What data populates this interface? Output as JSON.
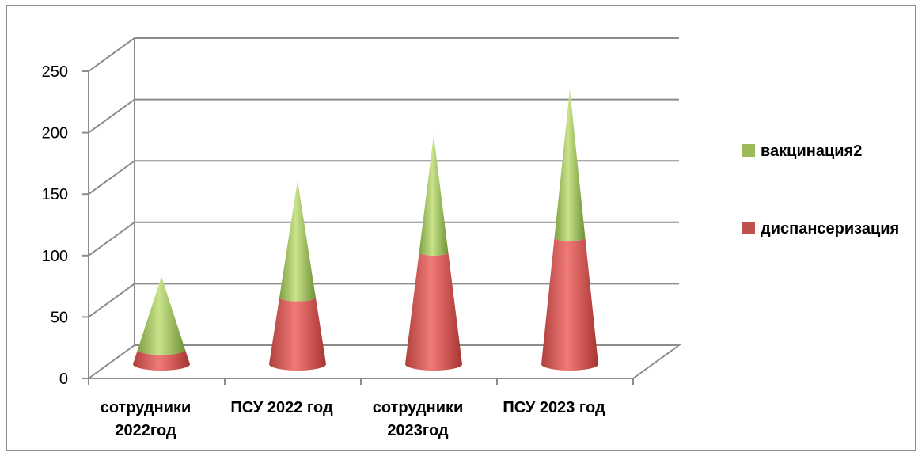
{
  "chart_data": {
    "type": "bar",
    "style": "3d-stacked-cone",
    "categories": [
      [
        "сотрудники",
        "2022год"
      ],
      [
        "ПСУ 2022 год"
      ],
      [
        "сотрудники",
        "2023год"
      ],
      [
        "ПСУ 2023 год"
      ]
    ],
    "series": [
      {
        "name": "диспансеризация",
        "values": [
          12,
          55,
          92,
          104
        ],
        "color": "#c0504d"
      },
      {
        "name": "вакцинация2",
        "values": [
          60,
          96,
          96,
          122
        ],
        "color": "#9bbb59"
      }
    ],
    "ylim": [
      0,
      250
    ],
    "yticks": [
      "0",
      "50",
      "100",
      "150",
      "200",
      "250"
    ],
    "grid": true,
    "legend_position": "right"
  }
}
